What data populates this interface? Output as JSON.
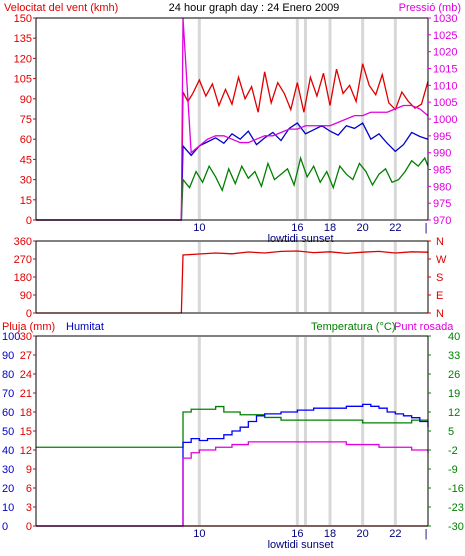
{
  "header": {
    "left_title": "Velocitat del vent (kmh)",
    "center_title": "24 hour graph day : 24 Enero 2009",
    "right_title": "Pressió (mb)"
  },
  "colors": {
    "wind": "#e00000",
    "wind_avg": "#0000c8",
    "wind_min": "#008000",
    "pressure": "#e000e0",
    "humidity": "#0000ff",
    "temperature": "#008000",
    "dewpoint": "#e000e0",
    "rain": "#e00000",
    "dir": "#e00000",
    "grid": "#d8d8d8",
    "frame": "#000000"
  },
  "time_axis": {
    "ticks": [
      {
        "h": 10,
        "label": "10"
      },
      {
        "h": 16,
        "label": "16"
      },
      {
        "h": 16.5,
        "label": "16"
      },
      {
        "h": 18,
        "label": "18"
      },
      {
        "h": 20,
        "label": "20"
      },
      {
        "h": 22,
        "label": "22"
      }
    ],
    "sun_label": "lowtidi sunset",
    "end_label": "|"
  },
  "chart_data": [
    {
      "type": "line",
      "title": "24 hour graph day : 24 Enero 2009",
      "left_axis": {
        "label": "Velocitat del vent (kmh)",
        "ticks": [
          "150",
          "135",
          "120",
          "105",
          "90",
          "75",
          "60",
          "45",
          "30",
          "15",
          "0"
        ],
        "range": [
          0,
          150
        ]
      },
      "right_axis": {
        "label": "Pressió (mb)",
        "ticks": [
          "1030",
          "1025",
          "1020",
          "1015",
          "1010",
          "1005",
          "1000",
          "995",
          "990",
          "985",
          "980",
          "975",
          "970"
        ],
        "range": [
          970,
          1030
        ]
      },
      "data_start_hour": 9,
      "series": [
        {
          "color_key": "wind",
          "axis": "left",
          "x": [
            0,
            8.9,
            9,
            9.3,
            9.6,
            10,
            10.4,
            10.8,
            11.2,
            11.6,
            12,
            12.4,
            12.8,
            13.2,
            13.6,
            14,
            14.4,
            14.8,
            15.2,
            15.6,
            16,
            16.4,
            16.8,
            17.2,
            17.6,
            18,
            18.4,
            18.8,
            19.2,
            19.6,
            20,
            20.4,
            20.8,
            21.2,
            21.6,
            22,
            22.4,
            22.8,
            23.2,
            23.6,
            24
          ],
          "y": [
            0,
            0,
            95,
            88,
            94,
            104,
            92,
            101,
            85,
            97,
            86,
            106,
            90,
            99,
            80,
            110,
            87,
            102,
            94,
            82,
            102,
            80,
            106,
            92,
            109,
            85,
            112,
            94,
            100,
            88,
            116,
            100,
            93,
            108,
            87,
            82,
            95,
            88,
            83,
            86,
            103
          ]
        },
        {
          "color_key": "wind_avg",
          "axis": "left",
          "x": [
            0,
            8.9,
            9,
            9.5,
            10,
            10.5,
            11,
            11.5,
            12,
            12.5,
            13,
            13.5,
            14,
            14.5,
            15,
            15.5,
            16,
            16.5,
            17,
            17.5,
            18,
            18.5,
            19,
            19.5,
            20,
            20.5,
            21,
            21.5,
            22,
            22.5,
            23,
            23.5,
            24
          ],
          "y": [
            0,
            0,
            55,
            48,
            55,
            58,
            61,
            57,
            64,
            60,
            66,
            56,
            61,
            65,
            59,
            68,
            72,
            64,
            67,
            70,
            66,
            63,
            70,
            68,
            72,
            60,
            64,
            57,
            51,
            56,
            65,
            62,
            60
          ]
        },
        {
          "color_key": "wind_min",
          "axis": "left",
          "x": [
            0,
            8.9,
            9,
            9.4,
            9.8,
            10.2,
            10.6,
            11,
            11.4,
            11.8,
            12.2,
            12.6,
            13,
            13.4,
            13.8,
            14.2,
            14.6,
            15,
            15.4,
            15.8,
            16.2,
            16.6,
            17,
            17.4,
            17.8,
            18.2,
            18.6,
            19,
            19.4,
            19.8,
            20.2,
            20.6,
            21,
            21.4,
            21.8,
            22.2,
            22.6,
            23,
            23.4,
            23.8,
            24
          ],
          "y": [
            0,
            0,
            30,
            24,
            36,
            28,
            40,
            32,
            22,
            38,
            27,
            40,
            31,
            36,
            25,
            42,
            30,
            34,
            38,
            26,
            46,
            32,
            40,
            28,
            36,
            24,
            40,
            34,
            30,
            42,
            36,
            26,
            34,
            38,
            28,
            30,
            36,
            44,
            40,
            46,
            40
          ]
        },
        {
          "color_key": "pressure",
          "axis": "right",
          "x": [
            0,
            8.9,
            9,
            9.5,
            10,
            10.5,
            11,
            11.5,
            12,
            12.5,
            13,
            13.5,
            14,
            14.5,
            15,
            15.5,
            16,
            16.5,
            17,
            17.5,
            18,
            18.5,
            19,
            19.5,
            20,
            20.5,
            21,
            21.5,
            22,
            22.5,
            23,
            23.5,
            24
          ],
          "y": [
            970,
            970,
            1031,
            990,
            992,
            994,
            995,
            995,
            994,
            993,
            993,
            994,
            995,
            995,
            996,
            997,
            997,
            998,
            998,
            998,
            998,
            999,
            1000,
            1001,
            1001,
            1002,
            1002,
            1002,
            1003,
            1004,
            1004,
            1003,
            1001
          ]
        }
      ]
    },
    {
      "type": "line",
      "left_axis": {
        "label": "",
        "ticks": [
          "360",
          "270",
          "180",
          "90",
          "0"
        ],
        "range": [
          0,
          360
        ]
      },
      "right_axis": {
        "label": "",
        "ticks": [
          "N",
          "W",
          "S",
          "E",
          "N"
        ]
      },
      "series": [
        {
          "color_key": "dir",
          "axis": "left",
          "x": [
            0,
            8.9,
            9,
            10,
            11,
            12,
            13,
            14,
            15,
            16,
            17,
            18,
            19,
            20,
            21,
            22,
            23,
            24
          ],
          "y": [
            0,
            0,
            290,
            295,
            300,
            296,
            305,
            300,
            308,
            310,
            302,
            306,
            298,
            304,
            308,
            300,
            306,
            304
          ]
        }
      ]
    },
    {
      "type": "line",
      "top_labels": {
        "rain": "Pluja (mm)",
        "humidity": "Humitat",
        "temp": "Temperatura (°C)",
        "dew": "Punt rosada"
      },
      "hum_axis": {
        "ticks": [
          "100",
          "90",
          "80",
          "70",
          "60",
          "50",
          "40",
          "30",
          "20",
          "10",
          "0"
        ],
        "range": [
          0,
          100
        ]
      },
      "rain_axis": {
        "ticks": [
          "30",
          "27",
          "24",
          "21",
          "18",
          "15",
          "12",
          "9",
          "6",
          "3",
          "0"
        ],
        "range": [
          0,
          30
        ]
      },
      "temp_axis": {
        "ticks": [
          "40",
          "33",
          "26",
          "19",
          "12",
          "5",
          "-2",
          "-9",
          "-16",
          "-23",
          "-30"
        ],
        "range": [
          -30,
          40
        ]
      },
      "series": [
        {
          "color_key": "temperature",
          "axis": "temp",
          "x": [
            0,
            8.9,
            9,
            9.5,
            10,
            10.5,
            11,
            11.5,
            12,
            12.5,
            13,
            14,
            15,
            16,
            17,
            18,
            19,
            20,
            21,
            22,
            23,
            24
          ],
          "y": [
            -1,
            -1,
            12,
            13,
            13,
            13,
            14,
            12,
            12,
            11,
            11,
            10,
            9,
            9,
            9,
            9,
            9,
            8,
            8,
            8,
            9,
            9
          ]
        },
        {
          "color_key": "humidity",
          "axis": "hum",
          "x": [
            0,
            8.9,
            9,
            9.5,
            10,
            10.5,
            11,
            11.5,
            12,
            12.5,
            13,
            13.5,
            14,
            15,
            16,
            17,
            18,
            19,
            20,
            20.5,
            21,
            21.5,
            22,
            22.5,
            23,
            23.5,
            24
          ],
          "y": [
            0,
            0,
            44,
            46,
            45,
            46,
            46,
            48,
            50,
            52,
            55,
            58,
            59,
            60,
            61,
            62,
            62,
            63,
            64,
            63,
            62,
            60,
            59,
            58,
            57,
            55,
            52
          ]
        },
        {
          "color_key": "dewpoint",
          "axis": "temp",
          "x": [
            0,
            8.9,
            9,
            9.5,
            10,
            10.5,
            11,
            12,
            13,
            14,
            15,
            16,
            17,
            18,
            19,
            20,
            21,
            22,
            23,
            24
          ],
          "y": [
            -30,
            -30,
            -5,
            -3,
            -2,
            -2,
            -1,
            0,
            1,
            1,
            1,
            1,
            1,
            1,
            0,
            0,
            -1,
            -1,
            -2,
            -3
          ]
        },
        {
          "color_key": "rain",
          "axis": "rain",
          "x": [
            0,
            24
          ],
          "y": [
            0,
            0
          ]
        }
      ]
    }
  ]
}
